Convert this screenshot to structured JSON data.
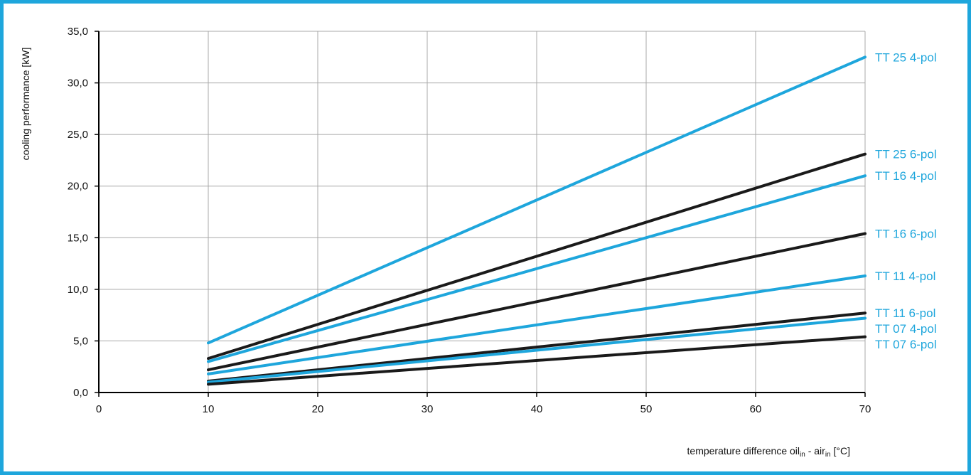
{
  "chart_data": {
    "type": "line",
    "title": "",
    "ylabel": "cooling performance [kW]",
    "xlabel": {
      "prefix": "temperature difference oil",
      "sub1": "in",
      "middle": " - air",
      "sub2": "in",
      "suffix": " [°C]"
    },
    "xlim": [
      0,
      70
    ],
    "ylim": [
      0,
      35
    ],
    "xticks": [
      0,
      10,
      20,
      30,
      40,
      50,
      60,
      70
    ],
    "xtick_labels": [
      "0",
      "10",
      "20",
      "30",
      "40",
      "50",
      "60",
      "70"
    ],
    "yticks": [
      0,
      5,
      10,
      15,
      20,
      25,
      30,
      35
    ],
    "ytick_labels": [
      "0,0",
      "5,0",
      "10,0",
      "15,0",
      "20,0",
      "25,0",
      "30,0",
      "35,0"
    ],
    "grid": true,
    "legend": "labels at right end of each line",
    "colors": {
      "blue": "#1ea6dc",
      "black": "#1a1a1a"
    },
    "series": [
      {
        "name": "TT 25 4-pol",
        "color": "#1ea6dc",
        "x": [
          10,
          70
        ],
        "y": [
          4.8,
          32.5
        ]
      },
      {
        "name": "TT 25 6-pol",
        "color": "#1a1a1a",
        "x": [
          10,
          70
        ],
        "y": [
          3.3,
          23.1
        ]
      },
      {
        "name": "TT 16 4-pol",
        "color": "#1ea6dc",
        "x": [
          10,
          70
        ],
        "y": [
          3.0,
          21.0
        ]
      },
      {
        "name": "TT 16 6-pol",
        "color": "#1a1a1a",
        "x": [
          10,
          70
        ],
        "y": [
          2.2,
          15.4
        ]
      },
      {
        "name": "TT 11 4-pol",
        "color": "#1ea6dc",
        "x": [
          10,
          70
        ],
        "y": [
          1.8,
          11.3
        ]
      },
      {
        "name": "TT 11 6-pol",
        "color": "#1a1a1a",
        "x": [
          10,
          70
        ],
        "y": [
          1.1,
          7.7
        ]
      },
      {
        "name": "TT 07 4-pol",
        "color": "#1ea6dc",
        "x": [
          10,
          70
        ],
        "y": [
          1.0,
          7.2
        ]
      },
      {
        "name": "TT 07 6-pol",
        "color": "#1a1a1a",
        "x": [
          10,
          70
        ],
        "y": [
          0.8,
          5.4
        ]
      }
    ]
  }
}
